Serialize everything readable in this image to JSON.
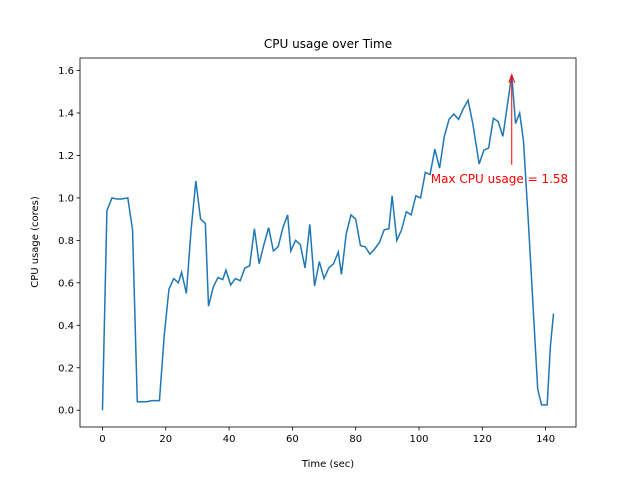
{
  "chart_data": {
    "type": "line",
    "title": "CPU usage over Time",
    "xlabel": "Time (sec)",
    "ylabel": "CPU usage (cores)",
    "x": [
      0,
      1.4,
      3,
      4.5,
      6,
      8,
      9.5,
      11,
      12.5,
      14,
      15.5,
      17,
      18,
      19.5,
      21,
      22.5,
      24,
      25,
      26.5,
      28,
      29.5,
      31,
      32.5,
      33.5,
      35,
      36.5,
      38,
      39,
      40.5,
      42,
      43.5,
      45,
      46.5,
      48,
      49.5,
      51,
      52.5,
      54,
      55.5,
      57,
      58.5,
      59.5,
      61,
      62.5,
      64,
      65.5,
      67,
      68.5,
      70,
      71.5,
      73,
      74.5,
      75.5,
      77,
      78.5,
      80,
      81.5,
      83,
      84.5,
      86,
      87.5,
      89,
      90.5,
      91.5,
      93,
      94.5,
      96,
      97.5,
      99,
      100.5,
      102,
      103.5,
      105,
      106.5,
      108,
      109.5,
      111,
      112.5,
      114,
      115.5,
      117,
      119,
      120.5,
      122,
      123.5,
      125,
      126.5,
      129.3,
      130.5,
      131.8,
      133,
      134.5,
      136,
      137.5,
      138.7,
      140.5,
      141.5,
      142.5
    ],
    "series": [
      {
        "name": "CPU usage",
        "color": "#1f77b4",
        "values": [
          0,
          0.94,
          1.0,
          0.995,
          0.995,
          1.0,
          0.85,
          0.04,
          0.04,
          0.04,
          0.045,
          0.045,
          0.045,
          0.35,
          0.57,
          0.62,
          0.6,
          0.65,
          0.55,
          0.85,
          1.08,
          0.9,
          0.88,
          0.49,
          0.58,
          0.625,
          0.615,
          0.66,
          0.59,
          0.62,
          0.61,
          0.67,
          0.68,
          0.855,
          0.69,
          0.78,
          0.86,
          0.75,
          0.77,
          0.86,
          0.92,
          0.75,
          0.8,
          0.78,
          0.67,
          0.875,
          0.585,
          0.7,
          0.62,
          0.67,
          0.69,
          0.745,
          0.64,
          0.83,
          0.92,
          0.9,
          0.775,
          0.77,
          0.735,
          0.76,
          0.79,
          0.85,
          0.855,
          1.01,
          0.8,
          0.85,
          0.935,
          0.92,
          1.01,
          1.0,
          1.12,
          1.11,
          1.23,
          1.14,
          1.29,
          1.37,
          1.395,
          1.37,
          1.42,
          1.46,
          1.35,
          1.16,
          1.225,
          1.235,
          1.375,
          1.36,
          1.29,
          1.58,
          1.35,
          1.4,
          1.27,
          0.9,
          0.5,
          0.1,
          0.025,
          0.025,
          0.3,
          0.455
        ]
      }
    ],
    "xlim": [
      -7.1,
      149.6
    ],
    "ylim": [
      -0.079,
      1.659
    ],
    "xticks": [
      0,
      20,
      40,
      60,
      80,
      100,
      120,
      140
    ],
    "yticks": [
      {
        "value": 0,
        "label": "0.0"
      },
      0.2,
      0.4,
      0.6,
      0.8,
      {
        "value": 1,
        "label": "1.0"
      },
      1.2,
      1.4,
      1.6
    ],
    "annotation": {
      "text": "Max CPU usage = 1.58",
      "x": 129.3,
      "y": 1.58,
      "color": "red"
    }
  }
}
